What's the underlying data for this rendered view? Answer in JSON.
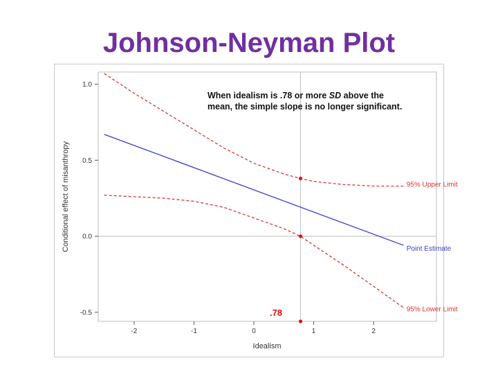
{
  "slide": {
    "title": "Johnson-Neyman Plot"
  },
  "chart_data": {
    "type": "line",
    "title": "",
    "xlabel": "Idealism",
    "ylabel": "Conditional effect of misanthropy",
    "xlim": [
      -2.6,
      3.05
    ],
    "ylim": [
      -0.56,
      1.08
    ],
    "x_ticks": [
      -2,
      -1,
      0,
      1,
      2
    ],
    "x_tick_labels": [
      "-2",
      "-1",
      "0",
      "1",
      "2"
    ],
    "y_ticks": [
      -0.5,
      0.0,
      0.5,
      1.0
    ],
    "y_tick_labels": [
      "-0.5",
      "0.0",
      "0.5",
      "1.0"
    ],
    "grid": false,
    "reference_lines": {
      "x": 0.78,
      "y": 0.0
    },
    "series": [
      {
        "name": "Point Estimate",
        "style": "solid",
        "color": "#3a3acc",
        "x": [
          -2.5,
          2.5
        ],
        "y": [
          0.67,
          -0.06
        ]
      },
      {
        "name": "95% Upper Limit",
        "style": "dashed",
        "color": "#e03030",
        "x": [
          -2.5,
          -2.0,
          -1.5,
          -1.0,
          -0.5,
          0.0,
          0.5,
          0.78,
          1.0,
          1.5,
          2.0,
          2.5
        ],
        "y": [
          1.07,
          0.94,
          0.82,
          0.7,
          0.58,
          0.48,
          0.41,
          0.38,
          0.36,
          0.34,
          0.33,
          0.33
        ]
      },
      {
        "name": "95% Lower Limit",
        "style": "dashed",
        "color": "#e03030",
        "x": [
          -2.5,
          -2.0,
          -1.5,
          -1.0,
          -0.5,
          0.0,
          0.5,
          0.78,
          1.0,
          1.5,
          2.0,
          2.5
        ],
        "y": [
          0.27,
          0.26,
          0.25,
          0.23,
          0.19,
          0.12,
          0.05,
          0.0,
          -0.06,
          -0.19,
          -0.33,
          -0.47
        ]
      }
    ],
    "markers": [
      {
        "x": 0.78,
        "y": 0.38,
        "color": "#e01010"
      },
      {
        "x": 0.78,
        "y": 0.0,
        "color": "#e01010"
      },
      {
        "x": 0.78,
        "y": -0.56,
        "color": "#e01010"
      }
    ],
    "annotations": {
      "note_line1_parts": [
        "When idealism is .78 or more ",
        "SD",
        " above the"
      ],
      "note_line2": "mean, the simple slope is no longer significant.",
      "jn_point_label": ".78"
    },
    "line_labels": [
      {
        "text": "95% Upper Limit",
        "color": "#e03030",
        "x": 2.55,
        "y": 0.325
      },
      {
        "text": "Point Estimate",
        "color": "#3a3acc",
        "x": 2.55,
        "y": -0.095
      },
      {
        "text": "95% Lower Limit",
        "color": "#e03030",
        "x": 2.55,
        "y": -0.495
      }
    ]
  }
}
